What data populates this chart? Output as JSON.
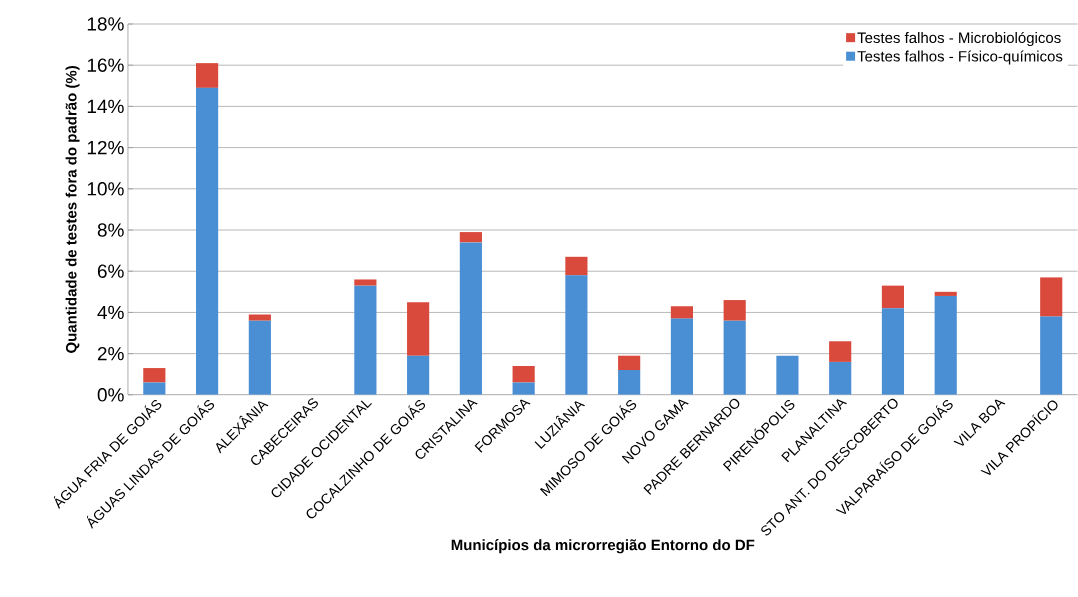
{
  "chart_data": {
    "type": "bar",
    "stacked": true,
    "xlabel": "Municípios da microrregião Entorno do DF",
    "ylabel": "Quantidade de testes fora do padrão (%)",
    "categories": [
      "ÁGUA FRIA DE GOIÁS",
      "ÁGUAS LINDAS DE GOIÁS",
      "ALEXÂNIA",
      "CABECEIRAS",
      "CIDADE OCIDENTAL",
      "COCALZINHO DE GOIÁS",
      "CRISTALINA",
      "FORMOSA",
      "LUZIÂNIA",
      "MIMOSO DE GOIÁS",
      "NOVO GAMA",
      "PADRE BERNARDO",
      "PIRENÓPOLIS",
      "PLANALTINA",
      "STO ANT. DO DESCOBERTO",
      "VALPARAÍSO DE GOIÁS",
      "VILA BOA",
      "VILA PROPÍCIO"
    ],
    "series": [
      {
        "name": "Testes falhos - Físico-químicos",
        "color": "#4a8fd4",
        "values": [
          0.6,
          14.9,
          3.6,
          0,
          5.3,
          1.9,
          7.4,
          0.6,
          5.8,
          1.2,
          3.7,
          3.6,
          1.9,
          1.6,
          4.2,
          4.8,
          0,
          3.8
        ]
      },
      {
        "name": "Testes falhos - Microbiológicos",
        "color": "#d9493c",
        "values": [
          0.7,
          1.2,
          0.3,
          0,
          0.3,
          2.6,
          0.5,
          0.8,
          0.9,
          0.7,
          0.6,
          1.0,
          0,
          1.0,
          1.1,
          0.2,
          0,
          1.9
        ]
      }
    ],
    "ylim": [
      0,
      18
    ],
    "yticks": [
      {
        "value": 0,
        "label": "0%"
      },
      {
        "value": 2,
        "label": "2%"
      },
      {
        "value": 4,
        "label": "4%"
      },
      {
        "value": 6,
        "label": "6%"
      },
      {
        "value": 8,
        "label": "8%"
      },
      {
        "value": 10,
        "label": "10%"
      },
      {
        "value": 12,
        "label": "12%"
      },
      {
        "value": 14,
        "label": "14%"
      },
      {
        "value": 16,
        "label": "16%"
      },
      {
        "value": 18,
        "label": "18%"
      }
    ],
    "grid": "y",
    "legend": "top right"
  }
}
